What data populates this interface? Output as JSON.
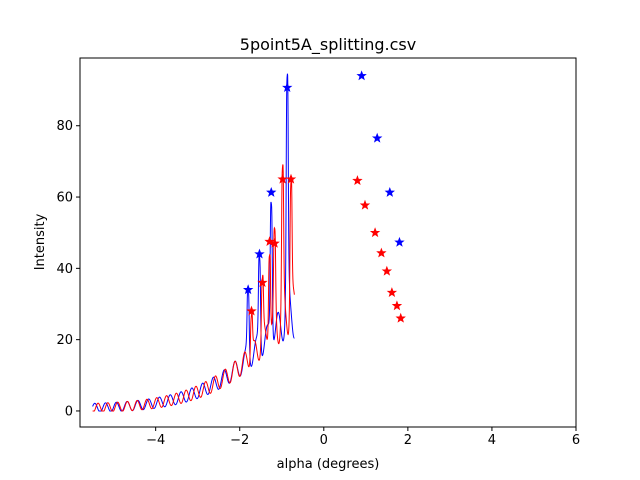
{
  "chart_data": {
    "type": "line",
    "title": "5point5A_splitting.csv",
    "xlabel": "alpha (degrees)",
    "ylabel": "Intensity",
    "xlim": [
      -5.8,
      6.0
    ],
    "ylim": [
      -4.5,
      99
    ],
    "xticks": [
      -4,
      -2,
      0,
      2,
      4,
      6
    ],
    "yticks": [
      0,
      20,
      40,
      60,
      80
    ],
    "grid": false,
    "legend": "none",
    "gap": [
      -0.68,
      0.68
    ],
    "series": [
      {
        "color": "#0000ff",
        "peaks": [
          {
            "x": -1.8,
            "y": 34
          },
          {
            "x": -1.53,
            "y": 44
          },
          {
            "x": -1.25,
            "y": 61.3
          },
          {
            "x": -0.87,
            "y": 90.7
          },
          {
            "x": 0.9,
            "y": 94
          },
          {
            "x": 1.27,
            "y": 76.5
          },
          {
            "x": 1.57,
            "y": 61.3
          },
          {
            "x": 1.8,
            "y": 47.3
          }
        ]
      },
      {
        "color": "#ff0000",
        "peaks": [
          {
            "x": -1.72,
            "y": 28
          },
          {
            "x": -1.46,
            "y": 36
          },
          {
            "x": -1.29,
            "y": 47.5
          },
          {
            "x": -1.17,
            "y": 47
          },
          {
            "x": -0.98,
            "y": 65
          },
          {
            "x": -0.78,
            "y": 65
          },
          {
            "x": 0.8,
            "y": 64.6
          },
          {
            "x": 0.98,
            "y": 57.7
          },
          {
            "x": 1.22,
            "y": 50
          },
          {
            "x": 1.37,
            "y": 44.3
          },
          {
            "x": 1.5,
            "y": 39.2
          },
          {
            "x": 1.62,
            "y": 33.2
          },
          {
            "x": 1.74,
            "y": 29.5
          },
          {
            "x": 1.83,
            "y": 26
          }
        ]
      }
    ]
  }
}
